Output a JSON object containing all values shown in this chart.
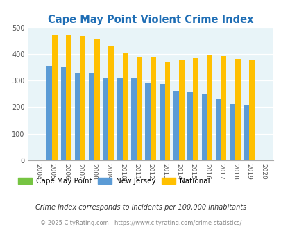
{
  "title": "Cape May Point Violent Crime Index",
  "years": [
    2004,
    2005,
    2006,
    2007,
    2008,
    2009,
    2010,
    2011,
    2012,
    2013,
    2014,
    2015,
    2016,
    2017,
    2018,
    2019,
    2020
  ],
  "cape_may_point": [
    0,
    0,
    0,
    0,
    0,
    0,
    0,
    0,
    0,
    0,
    0,
    0,
    0,
    0,
    0,
    0,
    0
  ],
  "new_jersey": [
    0,
    355,
    350,
    328,
    330,
    312,
    310,
    310,
    292,
    287,
    261,
    256,
    247,
    230,
    211,
    208,
    0
  ],
  "national": [
    0,
    470,
    474,
    467,
    457,
    432,
    405,
    389,
    390,
    368,
    378,
    384,
    398,
    394,
    381,
    379,
    0
  ],
  "bar_width": 0.38,
  "color_cape_may": "#76c442",
  "color_nj": "#5b9bd5",
  "color_national": "#ffc000",
  "bg_color": "#e8f4f8",
  "title_color": "#1f6eb5",
  "ylim": [
    0,
    500
  ],
  "yticks": [
    0,
    100,
    200,
    300,
    400,
    500
  ],
  "note": "Crime Index corresponds to incidents per 100,000 inhabitants",
  "copyright": "© 2025 CityRating.com - https://www.cityrating.com/crime-statistics/",
  "legend_labels": [
    "Cape May Point",
    "New Jersey",
    "National"
  ],
  "xlabel_rotation": -90
}
